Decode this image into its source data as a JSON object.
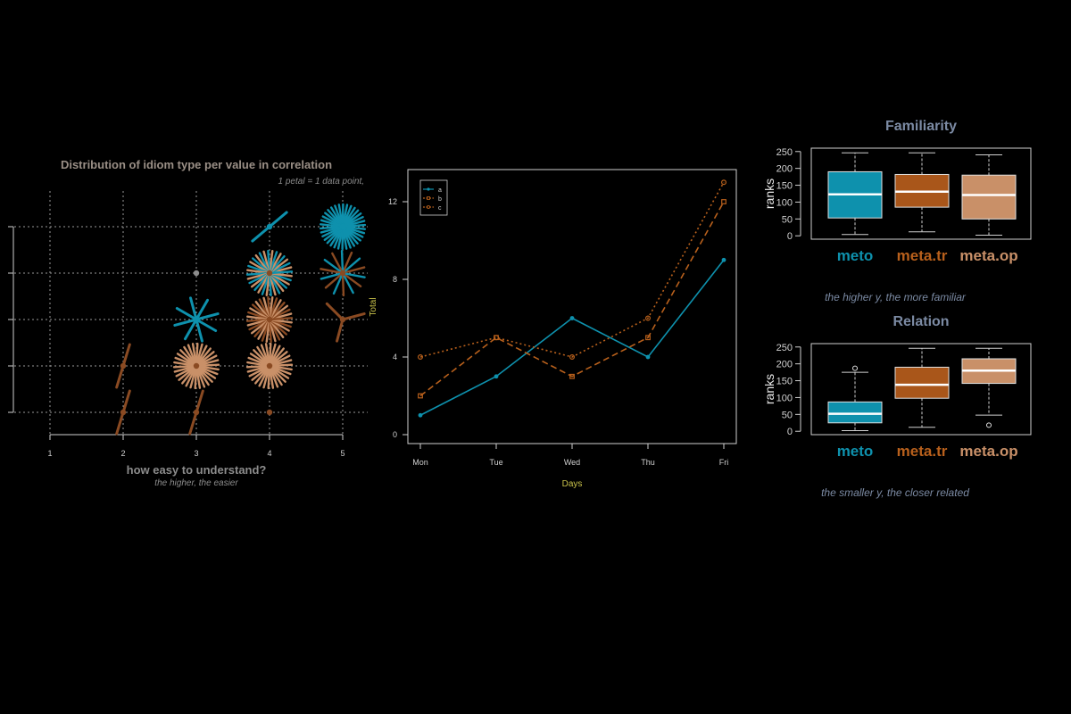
{
  "colors": {
    "background": "#000000",
    "teal": "#0e91ad",
    "orange": "#b8601c",
    "tan": "#c99068",
    "rust": "#8a4a22",
    "grey_text": "#8c8c8c",
    "title_grey": "#9a8f86",
    "slate": "#7b8aa3",
    "axis": "#d0d0d0",
    "yellow_label": "#c9c24a"
  },
  "chart_data": [
    {
      "type": "scatter",
      "subtype": "sunflower",
      "title": "Distribution of idiom type per value in correlation",
      "note": "1 petal = 1 data point,",
      "xlabel": "how easy to understand?",
      "xsublabel": "the higher, the easier",
      "x_ticks": [
        "1",
        "2",
        "3",
        "4",
        "5"
      ],
      "xlim": [
        1,
        5
      ],
      "ylim": [
        0.5,
        5.5
      ],
      "grid": true,
      "points": [
        {
          "x": 2,
          "y": 1,
          "petals": 2,
          "series": "c"
        },
        {
          "x": 2,
          "y": 2,
          "petals": 2,
          "series": "c"
        },
        {
          "x": 3,
          "y": 1,
          "petals": 2,
          "series": "c"
        },
        {
          "x": 3,
          "y": 2,
          "petals": 30,
          "series": "b"
        },
        {
          "x": 3,
          "y": 3,
          "petals": 8,
          "series": "a"
        },
        {
          "x": 3,
          "y": 4,
          "petals": 1,
          "series": "grey"
        },
        {
          "x": 4,
          "y": 1,
          "petals": 1,
          "series": "c"
        },
        {
          "x": 4,
          "y": 2,
          "petals": 30,
          "series": "b"
        },
        {
          "x": 4,
          "y": 3,
          "petals": 32,
          "series": "mixbc"
        },
        {
          "x": 4,
          "y": 4,
          "petals": 32,
          "series": "mixab"
        },
        {
          "x": 4,
          "y": 5,
          "petals": 2,
          "series": "a"
        },
        {
          "x": 5,
          "y": 3,
          "petals": 3,
          "series": "c"
        },
        {
          "x": 5,
          "y": 4,
          "petals": 14,
          "series": "mixac"
        },
        {
          "x": 5,
          "y": 5,
          "petals": 34,
          "series": "a"
        }
      ]
    },
    {
      "type": "line",
      "title": "",
      "xlabel": "Days",
      "ylabel": "Total",
      "categories": [
        "Mon",
        "Tue",
        "Wed",
        "Thu",
        "Fri"
      ],
      "y_ticks": [
        0,
        4,
        8,
        12
      ],
      "ylim": [
        0,
        13
      ],
      "legend": "top-left",
      "series": [
        {
          "name": "a",
          "values": [
            1,
            3,
            6,
            4,
            9
          ],
          "style": "solid",
          "marker": "dot"
        },
        {
          "name": "b",
          "values": [
            2,
            5,
            3,
            5,
            12
          ],
          "style": "dashed",
          "marker": "square"
        },
        {
          "name": "c",
          "values": [
            4,
            5,
            4,
            6,
            13
          ],
          "style": "dotted",
          "marker": "circle"
        }
      ]
    },
    {
      "type": "box",
      "title": "Familiarity",
      "ylabel": "ranks",
      "caption": "the higher y, the more familiar",
      "y_ticks": [
        0,
        50,
        100,
        150,
        200,
        250
      ],
      "ylim": [
        -10,
        260
      ],
      "boxes": [
        {
          "label": "meto",
          "min": 4,
          "q1": 53,
          "median": 123,
          "q3": 190,
          "max": 246,
          "outliers": []
        },
        {
          "label": "meta.tr",
          "min": 12,
          "q1": 85,
          "median": 131,
          "q3": 182,
          "max": 246,
          "outliers": []
        },
        {
          "label": "meta.op",
          "min": 2,
          "q1": 50,
          "median": 121,
          "q3": 180,
          "max": 240,
          "outliers": []
        }
      ]
    },
    {
      "type": "box",
      "title": "Relation",
      "ylabel": "ranks",
      "caption": "the smaller y, the closer related",
      "y_ticks": [
        0,
        50,
        100,
        150,
        200,
        250
      ],
      "ylim": [
        -10,
        260
      ],
      "boxes": [
        {
          "label": "meto",
          "min": 2,
          "q1": 25,
          "median": 52,
          "q3": 87,
          "max": 175,
          "outliers": [
            187
          ]
        },
        {
          "label": "meta.tr",
          "min": 12,
          "q1": 98,
          "median": 138,
          "q3": 190,
          "max": 246,
          "outliers": []
        },
        {
          "label": "meta.op",
          "min": 48,
          "q1": 142,
          "median": 180,
          "q3": 215,
          "max": 246,
          "outliers": [
            18
          ]
        }
      ]
    }
  ]
}
